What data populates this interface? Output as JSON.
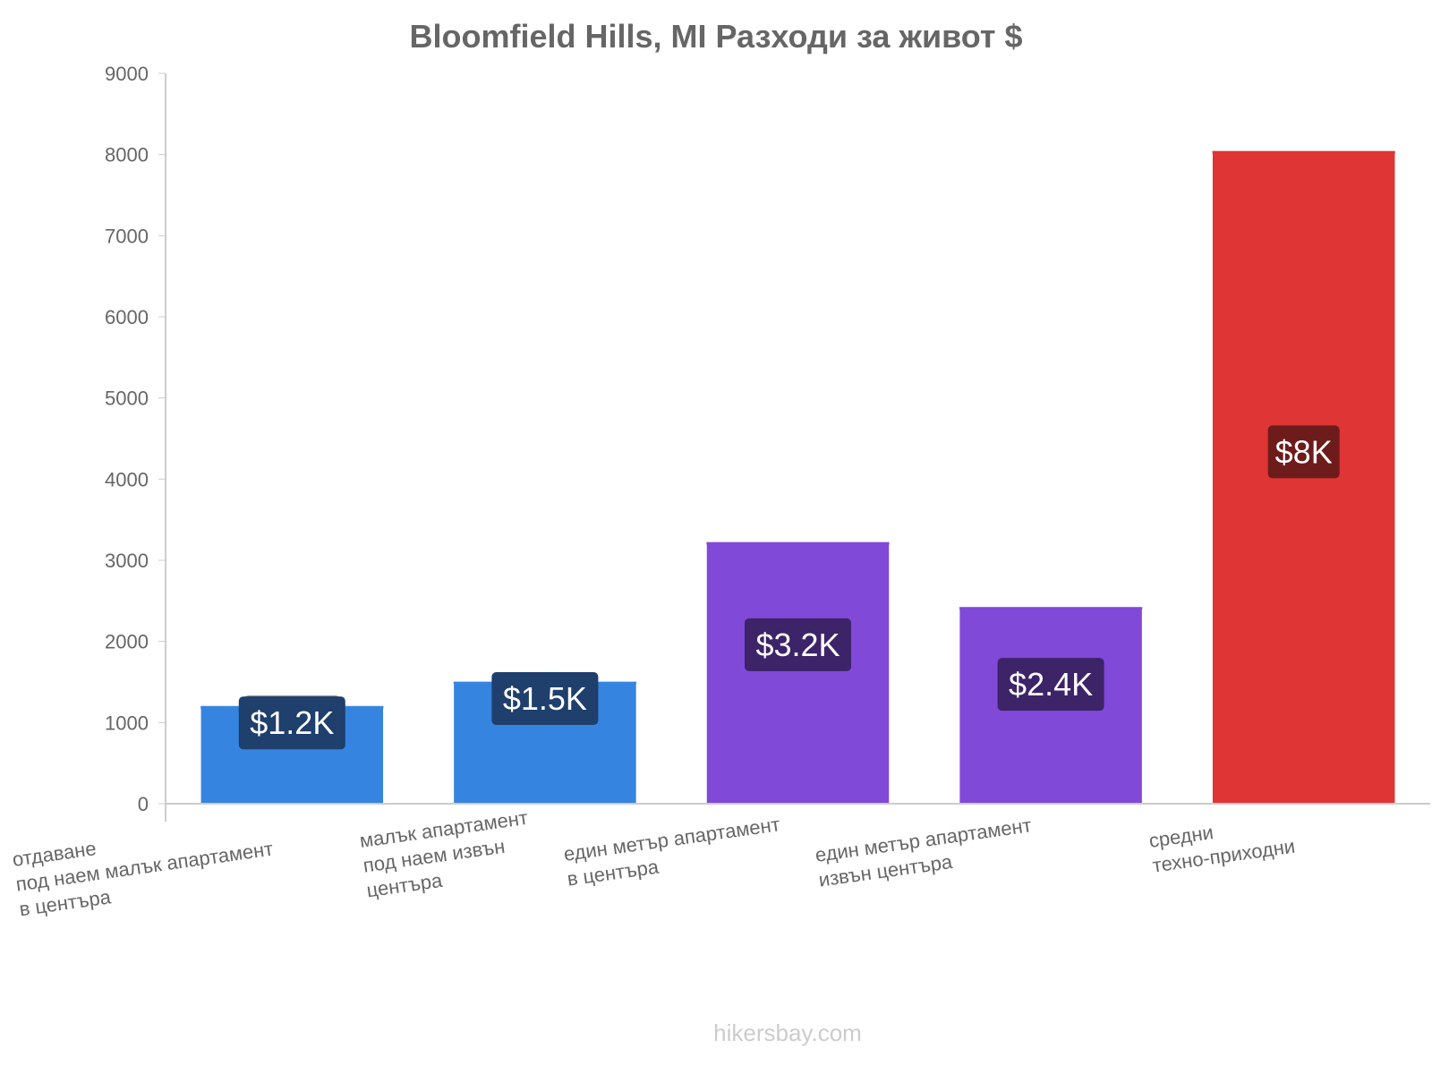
{
  "chart_data": {
    "type": "bar",
    "title": "Bloomfield Hills, MI Разходи за живот $",
    "xlabel": "",
    "ylabel": "",
    "ylim": [
      0,
      9000
    ],
    "yticks": [
      0,
      1000,
      2000,
      3000,
      4000,
      5000,
      6000,
      7000,
      8000,
      9000
    ],
    "grid": false,
    "categories": [
      [
        "отдаване",
        "под наем малък апартамент",
        "в центъра"
      ],
      [
        "малък апартамент",
        "под наем извън",
        "центъра"
      ],
      [
        "един метър апартамент",
        "в центъра"
      ],
      [
        "един метър апартамент",
        "извън центъра"
      ],
      [
        "средни",
        "техно-приходни"
      ]
    ],
    "values": [
      1200,
      1500,
      3220,
      2420,
      8040
    ],
    "data_labels": [
      "$1.2K",
      "$1.5K",
      "$3.2K",
      "$2.4K",
      "$8K"
    ],
    "bar_colors": [
      "#3584e0",
      "#3584e0",
      "#8049d8",
      "#8049d8",
      "#e03535"
    ],
    "label_box_colors": [
      "#1f3f6c",
      "#1f3f6c",
      "#3d2368",
      "#3d2368",
      "#6e1b1b"
    ],
    "marker_color": "#777777"
  },
  "watermark": "hikersbay.com"
}
